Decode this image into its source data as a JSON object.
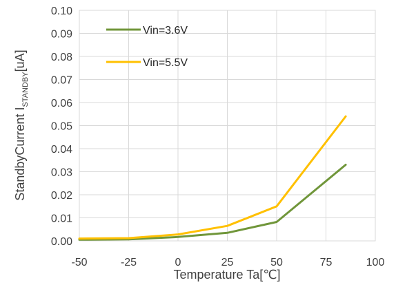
{
  "chart_data": {
    "type": "line",
    "title": "",
    "xlabel": "Temperature  Ta[℃]",
    "ylabel": {
      "prefix": "StandbyCurrent I",
      "subscript": "STANDBY",
      "suffix": "[uA]"
    },
    "x": [
      -50,
      -25,
      0,
      25,
      50,
      85
    ],
    "xlim": [
      -50,
      100
    ],
    "xticks": [
      -50,
      -25,
      0,
      25,
      50,
      75,
      100
    ],
    "ylim": [
      0,
      0.1
    ],
    "yticks": [
      "0.00",
      "0.01",
      "0.02",
      "0.03",
      "0.04",
      "0.05",
      "0.06",
      "0.07",
      "0.08",
      "0.09",
      "0.10"
    ],
    "grid": true,
    "legend": "top-left",
    "series": [
      {
        "name": "Vin=3.6V",
        "color": "#70963a",
        "values": [
          0.0005,
          0.0007,
          0.0017,
          0.0035,
          0.0082,
          0.033
        ]
      },
      {
        "name": "Vin=5.5V",
        "color": "#ffc000",
        "values": [
          0.001,
          0.0012,
          0.0028,
          0.0065,
          0.015,
          0.054
        ]
      }
    ]
  }
}
